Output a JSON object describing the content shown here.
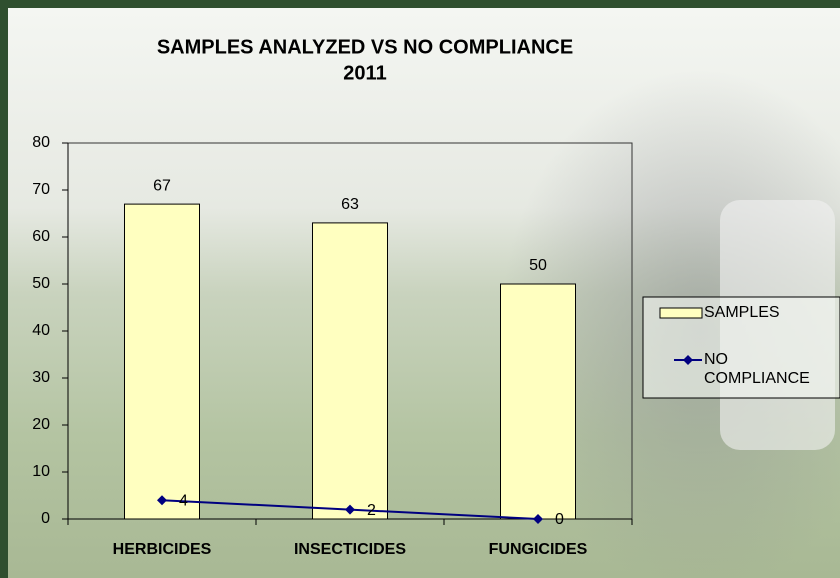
{
  "chart_data": {
    "type": "combo",
    "title": "SAMPLES ANALYZED VS NO COMPLIANCE",
    "subtitle": "2011",
    "categories": [
      "HERBICIDES",
      "INSECTICIDES",
      "FUNGICIDES"
    ],
    "series": [
      {
        "name": "SAMPLES",
        "type": "bar",
        "color": "#ffffc0",
        "values": [
          67,
          63,
          50
        ]
      },
      {
        "name": "NO COMPLIANCE",
        "type": "line",
        "color": "#000080",
        "values": [
          4,
          2,
          0
        ]
      }
    ],
    "ylim": [
      0,
      80
    ],
    "yticks": [
      0,
      10,
      20,
      30,
      40,
      50,
      60,
      70,
      80
    ],
    "legend": "right"
  }
}
